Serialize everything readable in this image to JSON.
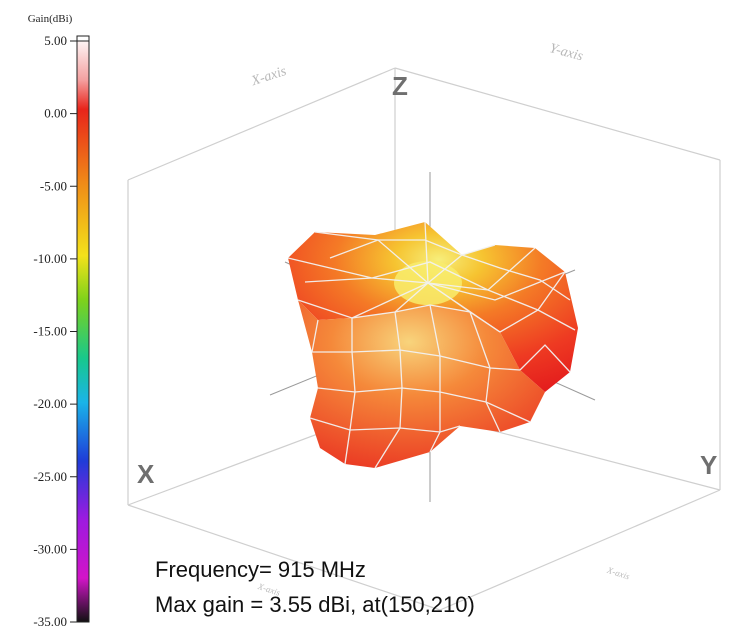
{
  "chart_data": {
    "type": "3d-surface",
    "colorbar": {
      "title": "Gain(dBi)",
      "range": [
        -35.0,
        5.0
      ],
      "ticks": [
        5.0,
        0.0,
        -5.0,
        -10.0,
        -15.0,
        -20.0,
        -25.0,
        -30.0,
        -35.0
      ],
      "tick_labels": [
        "5.00",
        "0.00",
        "-5.00",
        "-10.00",
        "-15.00",
        "-20.00",
        "-25.00",
        "-30.00",
        "-35.00"
      ],
      "colors": {
        "5": "#ffffff",
        "2": "#f4a0a0",
        "0": "#e8241a",
        "-5": "#f08a18",
        "-10": "#f3e21a",
        "-13": "#7fd21a",
        "-17": "#18c88c",
        "-20": "#1ab4e8",
        "-24": "#1f3cd8",
        "-28": "#9d1ae0",
        "-32": "#d214c8",
        "-35": "#111111"
      }
    },
    "axes": {
      "x_label": "X",
      "y_label": "Y",
      "z_label": "Z",
      "x_plane_label": "X-axis",
      "y_plane_label": "Y-axis"
    },
    "surface_color_range_dBi": [
      -5.0,
      3.55
    ],
    "max_gain_dBi": 3.55,
    "max_gain_direction": [
      150,
      210
    ],
    "frequency_MHz": 915
  },
  "annotations": {
    "frequency": "Frequency= 915 MHz",
    "max_gain": "Max gain = 3.55 dBi, at(150,210)"
  }
}
